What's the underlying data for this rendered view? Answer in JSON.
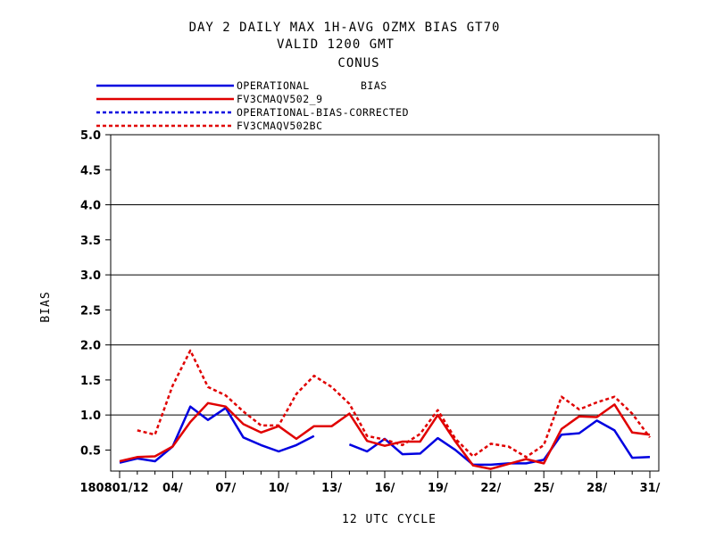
{
  "title": {
    "line1": "DAY 2 DAILY MAX   1H-AVG OZMX BIAS GT70",
    "line2": "VALID 1200 GMT",
    "line3": "CONUS"
  },
  "colors": {
    "operational": "#0000e0",
    "fv3": "#e00000"
  },
  "legend": {
    "bias_label": "BIAS",
    "items": [
      {
        "label": "OPERATIONAL",
        "color": "#0000e0",
        "dashed": false
      },
      {
        "label": "FV3CMAQV502_9",
        "color": "#e00000",
        "dashed": false
      },
      {
        "label": "OPERATIONAL-BIAS-CORRECTED",
        "color": "#0000e0",
        "dashed": true
      },
      {
        "label": "FV3CMAQV502BC",
        "color": "#e00000",
        "dashed": true
      }
    ]
  },
  "chart_data": {
    "type": "line",
    "title": "DAY 2 DAILY MAX   1H-AVG OZMX BIAS GT70",
    "xlabel": "12 UTC CYCLE",
    "ylabel": "BIAS",
    "ylim": [
      0.2,
      5.0
    ],
    "xlim": [
      1,
      31
    ],
    "yticks": [
      "5.0",
      "4.5",
      "4.0",
      "3.5",
      "3.0",
      "2.5",
      "2.0",
      "1.5",
      "1.0",
      "0.5"
    ],
    "ytick_values": [
      5.0,
      4.5,
      4.0,
      3.5,
      3.0,
      2.5,
      2.0,
      1.5,
      1.0,
      0.5
    ],
    "gridlines_y": [
      1.0,
      2.0,
      3.0,
      4.0
    ],
    "xtick_labels": [
      "180801/12",
      "04/",
      "07/",
      "10/",
      "13/",
      "16/",
      "19/",
      "22/",
      "25/",
      "28/",
      "31/"
    ],
    "xtick_days": [
      1,
      4,
      7,
      10,
      13,
      16,
      19,
      22,
      25,
      28,
      31
    ],
    "series": [
      {
        "name": "OPERATIONAL",
        "color": "#0000e0",
        "dashed": false,
        "x": [
          1,
          2,
          3,
          4,
          5,
          6,
          7,
          8,
          9,
          10,
          11,
          12,
          13,
          14,
          15,
          16,
          17,
          18,
          19,
          20,
          21,
          22,
          23,
          24,
          25,
          26,
          27,
          28,
          29,
          30,
          31
        ],
        "y": [
          0.32,
          0.38,
          0.34,
          0.55,
          1.12,
          0.93,
          1.1,
          0.68,
          0.57,
          0.48,
          0.57,
          0.7,
          null,
          0.58,
          0.48,
          0.66,
          0.44,
          0.45,
          0.67,
          0.5,
          0.29,
          0.29,
          0.31,
          0.31,
          0.36,
          0.72,
          0.74,
          0.92,
          0.78,
          0.39,
          0.4
        ]
      },
      {
        "name": "FV3CMAQV502_9",
        "color": "#e00000",
        "dashed": false,
        "x": [
          1,
          2,
          3,
          4,
          5,
          6,
          7,
          8,
          9,
          10,
          11,
          12,
          13,
          14,
          15,
          16,
          17,
          18,
          19,
          20,
          21,
          22,
          23,
          24,
          25,
          26,
          27,
          28,
          29,
          30,
          31
        ],
        "y": [
          0.34,
          0.4,
          0.41,
          0.55,
          0.9,
          1.17,
          1.12,
          0.87,
          0.75,
          0.84,
          0.66,
          0.84,
          0.84,
          1.02,
          0.63,
          0.56,
          0.62,
          0.62,
          1.0,
          0.62,
          0.28,
          0.23,
          0.3,
          0.37,
          0.31,
          0.8,
          0.98,
          0.97,
          1.15,
          0.75,
          0.72
        ]
      },
      {
        "name": "OPERATIONAL-BIAS-CORRECTED",
        "color": "#0000e0",
        "dashed": true,
        "x": [],
        "y": []
      },
      {
        "name": "FV3CMAQV502BC",
        "color": "#e00000",
        "dashed": true,
        "x": [
          2,
          3,
          4,
          5,
          6,
          7,
          8,
          9,
          10,
          11,
          12,
          13,
          14,
          15,
          16,
          17,
          18,
          19,
          20,
          21,
          22,
          23,
          24,
          25,
          26,
          27,
          28,
          29,
          30,
          31
        ],
        "y": [
          0.78,
          0.72,
          1.42,
          1.92,
          1.4,
          1.28,
          1.05,
          0.85,
          0.85,
          1.3,
          1.56,
          1.4,
          1.16,
          0.7,
          0.65,
          0.57,
          0.73,
          1.07,
          0.66,
          0.41,
          0.59,
          0.55,
          0.4,
          0.57,
          1.26,
          1.08,
          1.18,
          1.26,
          1.02,
          0.68
        ]
      }
    ]
  }
}
